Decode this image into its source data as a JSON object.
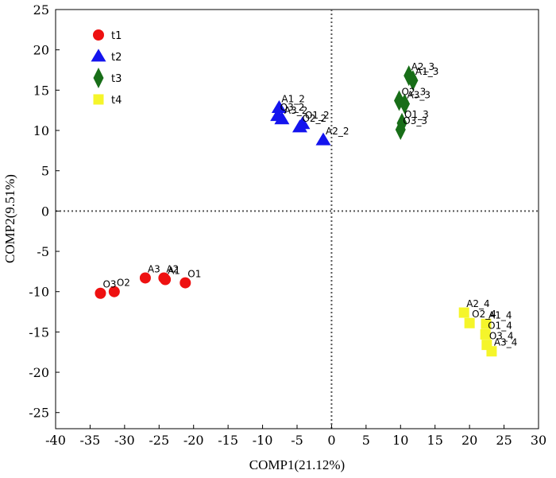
{
  "chart_data": {
    "type": "scatter",
    "xlabel": "COMP1(21.12%)",
    "ylabel": "COMP2(9.51%)",
    "xlim": [
      -40,
      30
    ],
    "ylim": [
      -27,
      25
    ],
    "xticks": [
      -40,
      -35,
      -30,
      -25,
      -20,
      -15,
      -10,
      -5,
      0,
      5,
      10,
      15,
      20,
      25,
      30
    ],
    "yticks": [
      -25,
      -20,
      -15,
      -10,
      -5,
      0,
      5,
      10,
      15,
      20,
      25
    ],
    "reference_lines": {
      "x": 0,
      "y": 0,
      "style": "dotted"
    },
    "legend_position": "top-left",
    "series": [
      {
        "name": "t1",
        "marker": "circle",
        "color": "#ee1111",
        "points": [
          {
            "x": -33.5,
            "y": -10.2,
            "label": "O3"
          },
          {
            "x": -31.5,
            "y": -10.0,
            "label": "O2"
          },
          {
            "x": -27.0,
            "y": -8.3,
            "label": "A3"
          },
          {
            "x": -24.3,
            "y": -8.3,
            "label": "A2"
          },
          {
            "x": -24.1,
            "y": -8.5,
            "label": "A1"
          },
          {
            "x": -21.2,
            "y": -8.9,
            "label": "O1"
          }
        ]
      },
      {
        "name": "t2",
        "marker": "triangle",
        "color": "#1414ee",
        "points": [
          {
            "x": -7.6,
            "y": 12.8,
            "label": "A1_2"
          },
          {
            "x": -7.8,
            "y": 11.8,
            "label": "O3_2"
          },
          {
            "x": -7.2,
            "y": 11.4,
            "label": "A3_2"
          },
          {
            "x": -4.6,
            "y": 10.4,
            "label": "O2_2"
          },
          {
            "x": -4.2,
            "y": 10.8,
            "label": "O1_2"
          },
          {
            "x": -1.2,
            "y": 8.8,
            "label": "A2_2"
          }
        ]
      },
      {
        "name": "t3",
        "marker": "diamond",
        "color": "#186e18",
        "points": [
          {
            "x": 11.2,
            "y": 16.8,
            "label": "A2_3"
          },
          {
            "x": 11.8,
            "y": 16.2,
            "label": "A1_3"
          },
          {
            "x": 9.8,
            "y": 13.7,
            "label": "O2_3"
          },
          {
            "x": 10.6,
            "y": 13.3,
            "label": "A3_3"
          },
          {
            "x": 10.2,
            "y": 10.9,
            "label": "O1_3"
          },
          {
            "x": 10.0,
            "y": 10.1,
            "label": "O3_3"
          }
        ]
      },
      {
        "name": "t4",
        "marker": "square",
        "color": "#f5f52a",
        "points": [
          {
            "x": 19.2,
            "y": -12.6,
            "label": "A2_4"
          },
          {
            "x": 20.0,
            "y": -13.9,
            "label": "O2_4"
          },
          {
            "x": 22.4,
            "y": -14.0,
            "label": "A1_4"
          },
          {
            "x": 22.3,
            "y": -15.3,
            "label": "O1_4"
          },
          {
            "x": 22.5,
            "y": -16.6,
            "label": "O3_4"
          },
          {
            "x": 23.2,
            "y": -17.4,
            "label": "A3_4"
          }
        ]
      }
    ]
  }
}
